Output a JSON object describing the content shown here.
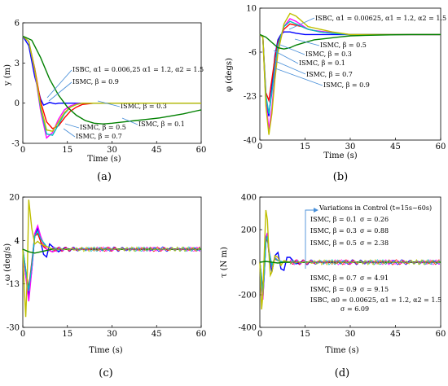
{
  "colors": {
    "axis": "#000000",
    "series": [
      "#0000ff",
      "#ff0000",
      "#ff00ff",
      "#00bfbf",
      "#bfbf00",
      "#008000"
    ]
  },
  "chart_data": [
    {
      "id": "a",
      "type": "line",
      "panel_label": "(a)",
      "xlabel": "Time (s)",
      "ylabel": "y (m)",
      "xlim": [
        0,
        60
      ],
      "ylim": [
        -3,
        6
      ],
      "xticks": [
        "0",
        "15",
        "30",
        "45",
        "60"
      ],
      "yticks": [
        "6",
        "3",
        "0",
        "-3"
      ],
      "series": [
        {
          "name": "ISMC, β = 0.1",
          "color": "#0000ff",
          "x": [
            0,
            2,
            4,
            6,
            7,
            8,
            9,
            10,
            11,
            12,
            14,
            16,
            60
          ],
          "y": [
            5,
            4.3,
            2.0,
            0.3,
            -0.15,
            -0.05,
            0.05,
            0.0,
            -0.05,
            0.0,
            0.0,
            0.0,
            0.0
          ]
        },
        {
          "name": "ISMC, β = 0.3",
          "color": "#ff0000",
          "x": [
            0,
            2,
            4,
            6,
            8,
            10,
            12,
            14,
            16,
            18,
            20,
            24,
            60
          ],
          "y": [
            5,
            4.6,
            2.6,
            0.1,
            -1.4,
            -1.9,
            -1.7,
            -1.1,
            -0.6,
            -0.3,
            -0.1,
            0.0,
            0.0
          ]
        },
        {
          "name": "ISMC, β = 0.5",
          "color": "#ff00ff",
          "x": [
            0,
            2,
            4,
            6,
            8,
            10,
            12,
            14,
            16,
            18,
            20,
            24,
            60
          ],
          "y": [
            5,
            4.6,
            2.4,
            -0.6,
            -2.6,
            -2.2,
            -1.2,
            -0.5,
            -0.2,
            -0.05,
            0.0,
            0.0,
            0.0
          ]
        },
        {
          "name": "ISMC, β = 0.7",
          "color": "#00bfbf",
          "x": [
            0,
            2,
            4,
            6,
            8,
            10,
            12,
            14,
            16,
            18,
            20,
            24,
            60
          ],
          "y": [
            5,
            4.6,
            2.5,
            -0.4,
            -2.3,
            -2.4,
            -1.6,
            -0.8,
            -0.3,
            -0.1,
            0.0,
            0.0,
            0.0
          ]
        },
        {
          "name": "ISMC, β = 0.9",
          "color": "#bfbf00",
          "x": [
            0,
            2,
            4,
            6,
            8,
            10,
            12,
            14,
            16,
            18,
            20,
            24,
            60
          ],
          "y": [
            5,
            4.6,
            2.5,
            -0.2,
            -2.0,
            -2.1,
            -1.4,
            -0.7,
            -0.3,
            -0.1,
            0.0,
            0.0,
            0.0
          ]
        },
        {
          "name": "ISBC, α1 = 0.006,25 α1 = 1.2, α2 = 1.5",
          "color": "#008000",
          "x": [
            0,
            3,
            6,
            9,
            12,
            15,
            18,
            21,
            24,
            27,
            30,
            34,
            38,
            42,
            46,
            50,
            54,
            58,
            60
          ],
          "y": [
            5,
            4.7,
            3.4,
            1.8,
            0.6,
            -0.3,
            -0.9,
            -1.3,
            -1.5,
            -1.55,
            -1.5,
            -1.4,
            -1.3,
            -1.2,
            -1.1,
            -0.95,
            -0.8,
            -0.6,
            -0.5
          ]
        }
      ],
      "annotations": [
        "ISBC, α1 = 0.006,25 α1 = 1.2, α2 = 1.5",
        "ISMC, β = 0.9",
        "ISMC, β = 0.3",
        "ISMC, β = 0.1",
        "ISMC, β = 0.5",
        "ISMC, β = 0.7"
      ]
    },
    {
      "id": "b",
      "type": "line",
      "panel_label": "(b)",
      "xlabel": "Time (s)",
      "ylabel": "φ (degs)",
      "xlim": [
        0,
        60
      ],
      "ylim": [
        -40,
        10
      ],
      "xticks": [
        "0",
        "15",
        "30",
        "45",
        "60"
      ],
      "yticks": [
        "10",
        "-6",
        "-23",
        "-40"
      ],
      "series": [
        {
          "name": "ISMC, β = 0.1",
          "color": "#0000ff",
          "x": [
            0,
            1,
            2,
            3,
            4,
            5,
            6,
            7,
            8,
            10,
            12,
            15,
            20,
            30,
            60
          ],
          "y": [
            0,
            -1,
            -25,
            -31,
            -20,
            -8,
            -2,
            0,
            1,
            1,
            0.5,
            0,
            0,
            0,
            0
          ]
        },
        {
          "name": "ISMC, β = 0.3",
          "color": "#ff0000",
          "x": [
            0,
            1,
            2,
            3,
            4,
            5,
            6,
            8,
            10,
            12,
            14,
            16,
            18,
            20,
            25,
            30,
            60
          ],
          "y": [
            0,
            -1,
            -22,
            -25,
            -17,
            -9,
            -3,
            2,
            4,
            3.5,
            3,
            2,
            1.5,
            1,
            0.5,
            0,
            0
          ]
        },
        {
          "name": "ISMC, β = 0.5",
          "color": "#ff00ff",
          "x": [
            0,
            1,
            2,
            3,
            4,
            5,
            6,
            8,
            10,
            12,
            14,
            16,
            18,
            22,
            26,
            30,
            60
          ],
          "y": [
            0,
            -1,
            -25,
            -36,
            -28,
            -15,
            -6,
            3,
            6,
            5,
            3.5,
            2,
            1.5,
            1,
            0.5,
            0,
            0
          ]
        },
        {
          "name": "ISMC, β = 0.7",
          "color": "#00bfbf",
          "x": [
            0,
            1,
            2,
            3,
            4,
            5,
            6,
            8,
            10,
            12,
            14,
            16,
            20,
            24,
            30,
            60
          ],
          "y": [
            0,
            -1,
            -23,
            -30,
            -22,
            -12,
            -4,
            3,
            5,
            4,
            3,
            2,
            1,
            0.5,
            0,
            0
          ]
        },
        {
          "name": "ISMC, β = 0.9",
          "color": "#bfbf00",
          "x": [
            0,
            1,
            2,
            3,
            4,
            5,
            6,
            8,
            10,
            12,
            14,
            16,
            20,
            24,
            30,
            60
          ],
          "y": [
            0,
            -1,
            -27,
            -38,
            -30,
            -17,
            -7,
            4,
            8,
            7,
            5,
            3,
            2,
            1,
            0,
            0
          ]
        },
        {
          "name": "ISBC, α1 = 0.00625, α1 = 1.2, α2 = 1.5",
          "color": "#008000",
          "x": [
            0,
            2,
            4,
            6,
            8,
            10,
            12,
            15,
            18,
            22,
            26,
            30,
            35,
            40,
            45,
            50,
            55,
            60
          ],
          "y": [
            0,
            -1,
            -3,
            -5,
            -5.5,
            -5,
            -4,
            -3,
            -2,
            -1.5,
            -1,
            -0.5,
            -0.3,
            -0.2,
            -0.1,
            0,
            0,
            0
          ]
        }
      ],
      "annotations": [
        "ISBC, α1 = 0.00625, α1 = 1.2, α2 = 1.5",
        "ISMC, β = 0.5",
        "ISMC, β = 0.3",
        "ISMC, β = 0.1",
        "ISMC, β = 0.7",
        "ISMC, β = 0.9"
      ]
    },
    {
      "id": "c",
      "type": "line",
      "panel_label": "(c)",
      "xlabel": "Time (s)",
      "ylabel": "ω (deg/s)",
      "xlim": [
        0,
        60
      ],
      "ylim": [
        -30,
        20
      ],
      "xticks": [
        "0",
        "15",
        "30",
        "45",
        "60"
      ],
      "yticks": [
        "20",
        "4",
        "-13",
        "-30"
      ],
      "series": [
        {
          "name": "ISMC, β = 0.1",
          "color": "#0000ff",
          "x": [
            0,
            1,
            2,
            3,
            4,
            5,
            6,
            7,
            8,
            9,
            10,
            12,
            14,
            16,
            20,
            60
          ],
          "y": [
            0,
            -10,
            -18,
            -8,
            5,
            8,
            3,
            -2,
            -3,
            2,
            1,
            -1,
            0.5,
            0,
            0,
            0
          ]
        },
        {
          "name": "ISMC, β = 0.3",
          "color": "#ff0000",
          "x": [
            0,
            1,
            2,
            3,
            4,
            5,
            6,
            7,
            8,
            10,
            12,
            14,
            20,
            60
          ],
          "y": [
            0,
            -8,
            -15,
            -5,
            5,
            6,
            3,
            1,
            0,
            -1,
            0,
            0,
            0,
            0
          ]
        },
        {
          "name": "ISMC, β = 0.5",
          "color": "#ff00ff",
          "x": [
            0,
            1,
            2,
            3,
            4,
            5,
            6,
            7,
            8,
            10,
            12,
            14,
            20,
            60
          ],
          "y": [
            0,
            -10,
            -20,
            -8,
            6,
            9,
            5,
            2,
            0,
            -1,
            0,
            0,
            0,
            0
          ]
        },
        {
          "name": "ISMC, β = 0.7",
          "color": "#00bfbf",
          "x": [
            0,
            1,
            2,
            3,
            4,
            5,
            6,
            8,
            10,
            12,
            20,
            60
          ],
          "y": [
            0,
            -8,
            -16,
            -6,
            5,
            7,
            4,
            1,
            0,
            0,
            0,
            0
          ]
        },
        {
          "name": "ISMC, β = 0.9",
          "color": "#bfbf00",
          "x": [
            0,
            0.5,
            1,
            1.5,
            2,
            3,
            4,
            5,
            6,
            8,
            10,
            12,
            20,
            60
          ],
          "y": [
            0,
            -15,
            -26,
            -10,
            19,
            8,
            2,
            3,
            2,
            1,
            0,
            0,
            0,
            0
          ]
        },
        {
          "name": "ISBC",
          "color": "#008000",
          "x": [
            0,
            2,
            4,
            6,
            8,
            10,
            15,
            20,
            60
          ],
          "y": [
            0,
            -1,
            -1.5,
            -1,
            -0.5,
            0,
            0,
            0,
            0
          ]
        }
      ]
    },
    {
      "id": "d",
      "type": "line",
      "panel_label": "(d)",
      "xlabel": "Time (s)",
      "ylabel": "τ (N m)",
      "xlim": [
        0,
        60
      ],
      "ylim": [
        -400,
        400
      ],
      "xticks": [
        "0",
        "15",
        "30",
        "45",
        "60"
      ],
      "yticks": [
        "400",
        "200",
        "0",
        "-200",
        "-400"
      ],
      "series": [
        {
          "name": "ISMC, β = 0.1",
          "color": "#0000ff",
          "x": [
            0,
            0.5,
            1,
            1.5,
            2,
            2.5,
            3,
            4,
            5,
            6,
            7,
            8,
            9,
            10,
            12,
            14,
            60
          ],
          "y": [
            0,
            -100,
            -220,
            -60,
            150,
            180,
            60,
            -60,
            40,
            60,
            -40,
            -50,
            30,
            30,
            -10,
            0,
            0
          ]
        },
        {
          "name": "ISMC, β = 0.3",
          "color": "#ff0000",
          "x": [
            0,
            0.5,
            1,
            1.5,
            2,
            2.5,
            3,
            4,
            5,
            6,
            8,
            10,
            60
          ],
          "y": [
            0,
            -80,
            -180,
            -40,
            120,
            150,
            60,
            -20,
            20,
            10,
            0,
            0,
            0
          ]
        },
        {
          "name": "ISMC, β = 0.5",
          "color": "#ff00ff",
          "x": [
            0,
            0.5,
            1,
            1.5,
            2,
            2.5,
            3,
            4,
            5,
            6,
            8,
            10,
            60
          ],
          "y": [
            0,
            -100,
            -230,
            -60,
            140,
            180,
            80,
            -30,
            30,
            10,
            0,
            0,
            0
          ]
        },
        {
          "name": "ISMC, β = 0.7",
          "color": "#00bfbf",
          "x": [
            0,
            0.5,
            1,
            1.5,
            2,
            2.5,
            3,
            4,
            5,
            6,
            8,
            10,
            60
          ],
          "y": [
            0,
            -90,
            -200,
            -50,
            130,
            160,
            70,
            -20,
            25,
            10,
            0,
            0,
            0
          ]
        },
        {
          "name": "ISMC, β = 0.9",
          "color": "#bfbf00",
          "x": [
            0,
            0.3,
            0.6,
            1,
            1.5,
            2,
            2.5,
            3,
            3.5,
            4,
            5,
            6,
            7,
            8,
            10,
            12,
            60
          ],
          "y": [
            0,
            -150,
            -290,
            -200,
            80,
            320,
            260,
            60,
            -80,
            -60,
            40,
            30,
            -20,
            10,
            0,
            0,
            0
          ]
        },
        {
          "name": "ISBC",
          "color": "#008000",
          "x": [
            0,
            2,
            4,
            6,
            8,
            10,
            60
          ],
          "y": [
            0,
            5,
            0,
            -5,
            0,
            0,
            0
          ]
        }
      ],
      "annotations": {
        "variations_label": "Variations in Control (t=15s~60s)",
        "rows": [
          {
            "left": "ISMC, β = 0.1",
            "right": "σ = 0.26"
          },
          {
            "left": "ISMC, β = 0.3",
            "right": "σ = 0.88"
          },
          {
            "left": "ISMC, β = 0.5",
            "right": "σ = 2.38"
          },
          {
            "left": "ISMC, β = 0.7",
            "right": "σ = 4.91"
          },
          {
            "left": "ISMC, β = 0.9",
            "right": "σ = 9.15"
          },
          {
            "left": "ISBC, α0 = 0.00625, α1 = 1.2, α2 = 1.5",
            "right": "σ = 6.09"
          }
        ]
      }
    }
  ]
}
